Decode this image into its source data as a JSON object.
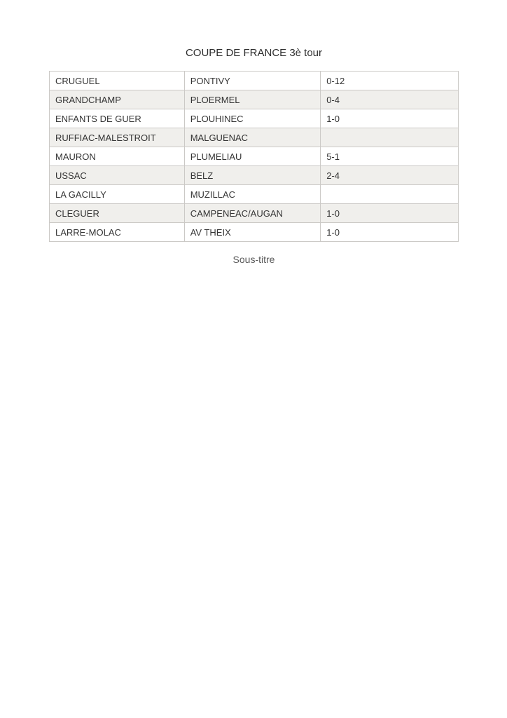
{
  "header": {
    "title": "COUPE DE FRANCE 3è tour"
  },
  "table": {
    "rows": [
      {
        "home": "CRUGUEL",
        "away": "PONTIVY",
        "score": "0-12"
      },
      {
        "home": "GRANDCHAMP",
        "away": "PLOERMEL",
        "score": "0-4"
      },
      {
        "home": "ENFANTS DE GUER",
        "away": "PLOUHINEC",
        "score": "1-0"
      },
      {
        "home": "RUFFIAC-MALESTROIT",
        "away": "MALGUENAC",
        "score": ""
      },
      {
        "home": "MAURON",
        "away": "PLUMELIAU",
        "score": "5-1"
      },
      {
        "home": "USSAC",
        "away": "BELZ",
        "score": "2-4"
      },
      {
        "home": "LA GACILLY",
        "away": "MUZILLAC",
        "score": ""
      },
      {
        "home": "CLEGUER",
        "away": "CAMPENEAC/AUGAN",
        "score": "1-0"
      },
      {
        "home": "LARRE-MOLAC",
        "away": "AV THEIX",
        "score": "1-0"
      }
    ]
  },
  "footer": {
    "subtitle": "Sous-titre"
  },
  "colors": {
    "stripe_row": "#f0efec",
    "table_border": "#cbc9c6",
    "body_text": "#343434",
    "subtitle_text": "#595959"
  }
}
